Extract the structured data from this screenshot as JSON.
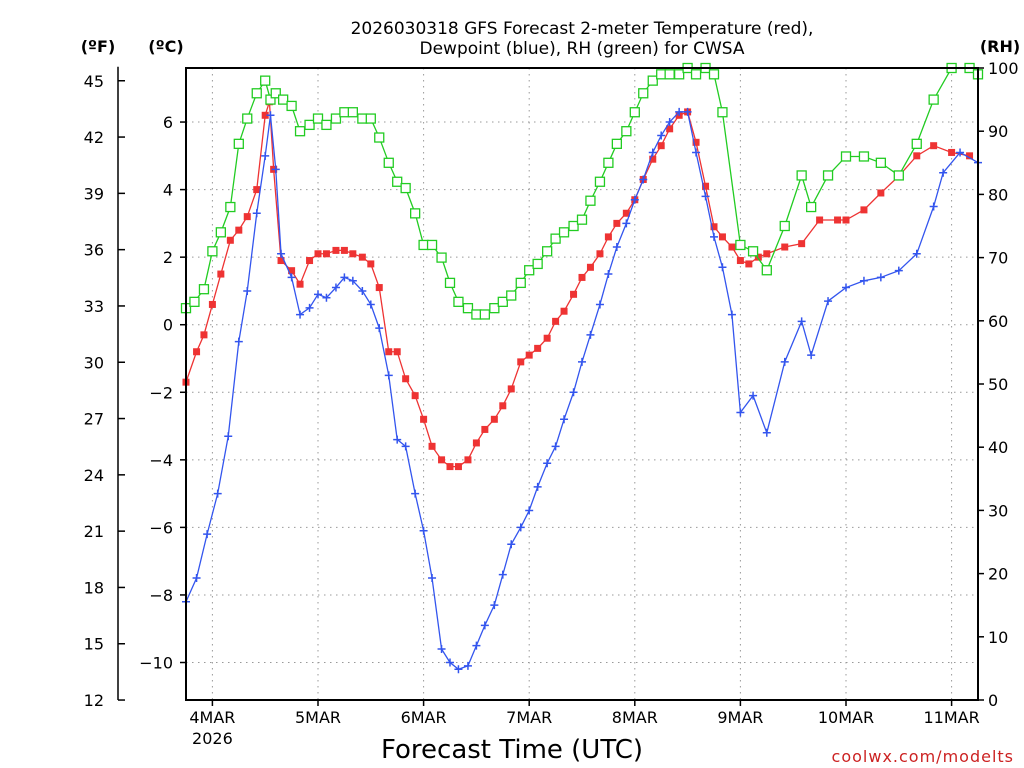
{
  "chart_data": {
    "type": "line",
    "title": "2026030318 GFS Forecast 2-meter Temperature (red),",
    "subtitle": "Dewpoint (blue), RH (green) for CWSA",
    "xlabel": "Forecast Time (UTC)",
    "credit": "coolwx.com/modelts",
    "units": {
      "fahrenheit": "(ºF)",
      "celsius": "(ºC)",
      "rh": "(RH)"
    },
    "x_unit": "days since 4MAR 00Z",
    "xlim": [
      -0.25,
      7.25
    ],
    "celsius_lim": [
      -11.11,
      7.6
    ],
    "rh_lim": [
      0,
      100
    ],
    "x_ticks": [
      {
        "x": 0,
        "label": "4MAR",
        "sublabel": "2026"
      },
      {
        "x": 1,
        "label": "5MAR"
      },
      {
        "x": 2,
        "label": "6MAR"
      },
      {
        "x": 3,
        "label": "7MAR"
      },
      {
        "x": 4,
        "label": "8MAR"
      },
      {
        "x": 5,
        "label": "9MAR"
      },
      {
        "x": 6,
        "label": "10MAR"
      },
      {
        "x": 7,
        "label": "11MAR"
      }
    ],
    "celsius_ticks": [
      {
        "v": 6,
        "label": "6"
      },
      {
        "v": 4,
        "label": "4"
      },
      {
        "v": 2,
        "label": "2"
      },
      {
        "v": 0,
        "label": "0"
      },
      {
        "v": -2,
        "label": "−2"
      },
      {
        "v": -4,
        "label": "−4"
      },
      {
        "v": -6,
        "label": "−6"
      },
      {
        "v": -8,
        "label": "−8"
      },
      {
        "v": -10,
        "label": "−10"
      }
    ],
    "fahrenheit_ticks": [
      {
        "v": 45,
        "label": "45"
      },
      {
        "v": 42,
        "label": "42"
      },
      {
        "v": 39,
        "label": "39"
      },
      {
        "v": 36,
        "label": "36"
      },
      {
        "v": 33,
        "label": "33"
      },
      {
        "v": 30,
        "label": "30"
      },
      {
        "v": 27,
        "label": "27"
      },
      {
        "v": 24,
        "label": "24"
      },
      {
        "v": 21,
        "label": "21"
      },
      {
        "v": 18,
        "label": "18"
      },
      {
        "v": 15,
        "label": "15"
      },
      {
        "v": 12,
        "label": "12"
      }
    ],
    "rh_ticks": [
      {
        "v": 100,
        "label": "100"
      },
      {
        "v": 90,
        "label": "90"
      },
      {
        "v": 80,
        "label": "80"
      },
      {
        "v": 70,
        "label": "70"
      },
      {
        "v": 60,
        "label": "60"
      },
      {
        "v": 50,
        "label": "50"
      },
      {
        "v": 40,
        "label": "40"
      },
      {
        "v": 30,
        "label": "30"
      },
      {
        "v": 20,
        "label": "20"
      },
      {
        "v": 10,
        "label": "10"
      },
      {
        "v": 0,
        "label": "0"
      }
    ],
    "series": [
      {
        "name": "Temperature",
        "axis": "celsius",
        "color": "#ee3333",
        "marker": "filled-square",
        "points": [
          [
            -0.25,
            -1.7
          ],
          [
            -0.15,
            -0.8
          ],
          [
            -0.08,
            -0.3
          ],
          [
            0,
            0.6
          ],
          [
            0.08,
            1.5
          ],
          [
            0.17,
            2.5
          ],
          [
            0.25,
            2.8
          ],
          [
            0.33,
            3.2
          ],
          [
            0.42,
            4
          ],
          [
            0.5,
            6.2
          ],
          [
            0.54,
            6.6
          ],
          [
            0.58,
            4.6
          ],
          [
            0.65,
            1.9
          ],
          [
            0.75,
            1.6
          ],
          [
            0.83,
            1.2
          ],
          [
            0.92,
            1.9
          ],
          [
            1,
            2.1
          ],
          [
            1.08,
            2.1
          ],
          [
            1.17,
            2.2
          ],
          [
            1.25,
            2.2
          ],
          [
            1.33,
            2.1
          ],
          [
            1.42,
            2
          ],
          [
            1.5,
            1.8
          ],
          [
            1.58,
            1.1
          ],
          [
            1.67,
            -0.8
          ],
          [
            1.75,
            -0.8
          ],
          [
            1.83,
            -1.6
          ],
          [
            1.92,
            -2.1
          ],
          [
            2,
            -2.8
          ],
          [
            2.08,
            -3.6
          ],
          [
            2.17,
            -4
          ],
          [
            2.25,
            -4.2
          ],
          [
            2.33,
            -4.2
          ],
          [
            2.42,
            -4
          ],
          [
            2.5,
            -3.5
          ],
          [
            2.58,
            -3.1
          ],
          [
            2.67,
            -2.8
          ],
          [
            2.75,
            -2.4
          ],
          [
            2.83,
            -1.9
          ],
          [
            2.92,
            -1.1
          ],
          [
            3,
            -0.9
          ],
          [
            3.08,
            -0.7
          ],
          [
            3.17,
            -0.4
          ],
          [
            3.25,
            0.1
          ],
          [
            3.33,
            0.4
          ],
          [
            3.42,
            0.9
          ],
          [
            3.5,
            1.4
          ],
          [
            3.58,
            1.7
          ],
          [
            3.67,
            2.1
          ],
          [
            3.75,
            2.6
          ],
          [
            3.83,
            3
          ],
          [
            3.92,
            3.3
          ],
          [
            4,
            3.7
          ],
          [
            4.08,
            4.3
          ],
          [
            4.17,
            4.9
          ],
          [
            4.25,
            5.3
          ],
          [
            4.33,
            5.8
          ],
          [
            4.42,
            6.2
          ],
          [
            4.5,
            6.3
          ],
          [
            4.58,
            5.4
          ],
          [
            4.67,
            4.1
          ],
          [
            4.75,
            2.9
          ],
          [
            4.83,
            2.6
          ],
          [
            4.92,
            2.3
          ],
          [
            5,
            1.9
          ],
          [
            5.08,
            1.8
          ],
          [
            5.17,
            2
          ],
          [
            5.25,
            2.1
          ],
          [
            5.42,
            2.3
          ],
          [
            5.58,
            2.4
          ],
          [
            5.75,
            3.1
          ],
          [
            5.92,
            3.1
          ],
          [
            6,
            3.1
          ],
          [
            6.17,
            3.4
          ],
          [
            6.33,
            3.9
          ],
          [
            6.5,
            4.4
          ],
          [
            6.67,
            5
          ],
          [
            6.83,
            5.3
          ],
          [
            7,
            5.1
          ],
          [
            7.17,
            5
          ]
        ]
      },
      {
        "name": "Dewpoint",
        "axis": "celsius",
        "color": "#3355ee",
        "marker": "plus",
        "points": [
          [
            -0.25,
            -8.2
          ],
          [
            -0.15,
            -7.5
          ],
          [
            -0.05,
            -6.2
          ],
          [
            0.05,
            -5
          ],
          [
            0.15,
            -3.3
          ],
          [
            0.25,
            -0.5
          ],
          [
            0.33,
            1
          ],
          [
            0.42,
            3.3
          ],
          [
            0.5,
            5
          ],
          [
            0.55,
            6.2
          ],
          [
            0.6,
            4.6
          ],
          [
            0.65,
            2.1
          ],
          [
            0.75,
            1.4
          ],
          [
            0.83,
            0.3
          ],
          [
            0.92,
            0.5
          ],
          [
            1,
            0.9
          ],
          [
            1.08,
            0.8
          ],
          [
            1.17,
            1.1
          ],
          [
            1.25,
            1.4
          ],
          [
            1.33,
            1.3
          ],
          [
            1.42,
            1
          ],
          [
            1.5,
            0.6
          ],
          [
            1.58,
            -0.1
          ],
          [
            1.67,
            -1.5
          ],
          [
            1.75,
            -3.4
          ],
          [
            1.83,
            -3.6
          ],
          [
            1.92,
            -5
          ],
          [
            2,
            -6.1
          ],
          [
            2.08,
            -7.5
          ],
          [
            2.17,
            -9.6
          ],
          [
            2.25,
            -10
          ],
          [
            2.33,
            -10.2
          ],
          [
            2.42,
            -10.1
          ],
          [
            2.5,
            -9.5
          ],
          [
            2.58,
            -8.9
          ],
          [
            2.67,
            -8.3
          ],
          [
            2.75,
            -7.4
          ],
          [
            2.83,
            -6.5
          ],
          [
            2.92,
            -6
          ],
          [
            3,
            -5.5
          ],
          [
            3.08,
            -4.8
          ],
          [
            3.17,
            -4.1
          ],
          [
            3.25,
            -3.6
          ],
          [
            3.33,
            -2.8
          ],
          [
            3.42,
            -2
          ],
          [
            3.5,
            -1.1
          ],
          [
            3.58,
            -0.3
          ],
          [
            3.67,
            0.6
          ],
          [
            3.75,
            1.5
          ],
          [
            3.83,
            2.3
          ],
          [
            3.92,
            3
          ],
          [
            4,
            3.7
          ],
          [
            4.08,
            4.3
          ],
          [
            4.17,
            5.1
          ],
          [
            4.25,
            5.6
          ],
          [
            4.33,
            6
          ],
          [
            4.42,
            6.3
          ],
          [
            4.5,
            6.3
          ],
          [
            4.58,
            5.1
          ],
          [
            4.67,
            3.8
          ],
          [
            4.75,
            2.6
          ],
          [
            4.83,
            1.7
          ],
          [
            4.92,
            0.3
          ],
          [
            5,
            -2.6
          ],
          [
            5.12,
            -2.1
          ],
          [
            5.25,
            -3.2
          ],
          [
            5.42,
            -1.1
          ],
          [
            5.58,
            0.1
          ],
          [
            5.67,
            -0.9
          ],
          [
            5.83,
            0.7
          ],
          [
            6,
            1.1
          ],
          [
            6.17,
            1.3
          ],
          [
            6.33,
            1.4
          ],
          [
            6.5,
            1.6
          ],
          [
            6.67,
            2.1
          ],
          [
            6.83,
            3.5
          ],
          [
            6.92,
            4.5
          ],
          [
            7.08,
            5.1
          ],
          [
            7.25,
            4.8
          ]
        ]
      },
      {
        "name": "RH",
        "axis": "rh",
        "color": "#22cc22",
        "marker": "open-square",
        "points": [
          [
            -0.25,
            62
          ],
          [
            -0.17,
            63
          ],
          [
            -0.08,
            65
          ],
          [
            0,
            71
          ],
          [
            0.08,
            74
          ],
          [
            0.17,
            78
          ],
          [
            0.25,
            88
          ],
          [
            0.33,
            92
          ],
          [
            0.42,
            96
          ],
          [
            0.5,
            98
          ],
          [
            0.55,
            95
          ],
          [
            0.6,
            96
          ],
          [
            0.67,
            95
          ],
          [
            0.75,
            94
          ],
          [
            0.83,
            90
          ],
          [
            0.92,
            91
          ],
          [
            1,
            92
          ],
          [
            1.08,
            91
          ],
          [
            1.17,
            92
          ],
          [
            1.25,
            93
          ],
          [
            1.33,
            93
          ],
          [
            1.42,
            92
          ],
          [
            1.5,
            92
          ],
          [
            1.58,
            89
          ],
          [
            1.67,
            85
          ],
          [
            1.75,
            82
          ],
          [
            1.83,
            81
          ],
          [
            1.92,
            77
          ],
          [
            2,
            72
          ],
          [
            2.08,
            72
          ],
          [
            2.17,
            70
          ],
          [
            2.25,
            66
          ],
          [
            2.33,
            63
          ],
          [
            2.42,
            62
          ],
          [
            2.5,
            61
          ],
          [
            2.58,
            61
          ],
          [
            2.67,
            62
          ],
          [
            2.75,
            63
          ],
          [
            2.83,
            64
          ],
          [
            2.92,
            66
          ],
          [
            3,
            68
          ],
          [
            3.08,
            69
          ],
          [
            3.17,
            71
          ],
          [
            3.25,
            73
          ],
          [
            3.33,
            74
          ],
          [
            3.42,
            75
          ],
          [
            3.5,
            76
          ],
          [
            3.58,
            79
          ],
          [
            3.67,
            82
          ],
          [
            3.75,
            85
          ],
          [
            3.83,
            88
          ],
          [
            3.92,
            90
          ],
          [
            4,
            93
          ],
          [
            4.08,
            96
          ],
          [
            4.17,
            98
          ],
          [
            4.25,
            99
          ],
          [
            4.33,
            99
          ],
          [
            4.42,
            99
          ],
          [
            4.5,
            100
          ],
          [
            4.58,
            99
          ],
          [
            4.67,
            100
          ],
          [
            4.75,
            99
          ],
          [
            4.83,
            93
          ],
          [
            5,
            72
          ],
          [
            5.12,
            71
          ],
          [
            5.25,
            68
          ],
          [
            5.42,
            75
          ],
          [
            5.58,
            83
          ],
          [
            5.67,
            78
          ],
          [
            5.83,
            83
          ],
          [
            6,
            86
          ],
          [
            6.17,
            86
          ],
          [
            6.33,
            85
          ],
          [
            6.5,
            83
          ],
          [
            6.67,
            88
          ],
          [
            6.83,
            95
          ],
          [
            7,
            100
          ],
          [
            7.17,
            100
          ],
          [
            7.25,
            99
          ]
        ]
      }
    ]
  }
}
